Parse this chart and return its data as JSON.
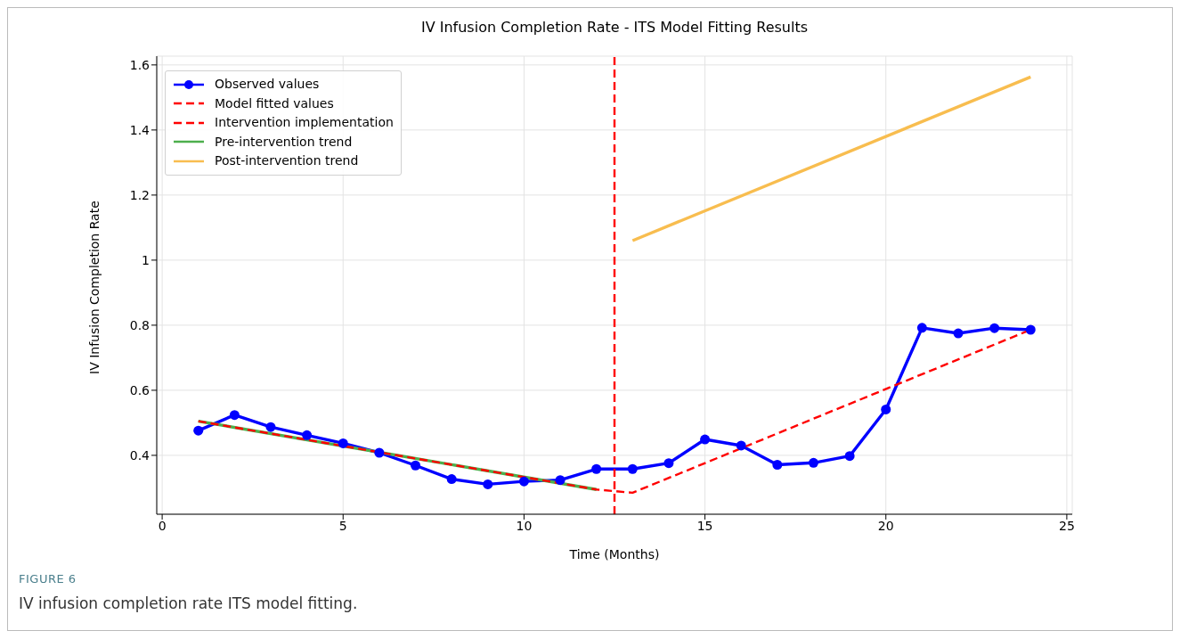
{
  "chart_data": {
    "type": "line",
    "title": "IV Infusion Completion Rate - ITS Model Fitting Results",
    "xlabel": "Time (Months)",
    "ylabel": "IV Infusion Completion Rate",
    "xlim": [
      -0.15,
      25.15
    ],
    "xticks": [
      0,
      5,
      10,
      15,
      20,
      25
    ],
    "ylim": [
      0.219,
      1.627
    ],
    "yticks": [
      0.4,
      0.6,
      0.8,
      1.0,
      1.2,
      1.4,
      1.6
    ],
    "grid": true,
    "legend": "top left",
    "series": [
      {
        "name": "Observed values",
        "color": "#0000ff",
        "marker": "circle",
        "line_style": "solid",
        "x": [
          1,
          2,
          3,
          4,
          5,
          6,
          7,
          8,
          9,
          10,
          11,
          12,
          13,
          14,
          15,
          16,
          17,
          18,
          19,
          20,
          21,
          22,
          23,
          24
        ],
        "values": [
          0.476,
          0.524,
          0.487,
          0.462,
          0.437,
          0.408,
          0.369,
          0.327,
          0.311,
          0.32,
          0.324,
          0.358,
          0.358,
          0.376,
          0.449,
          0.43,
          0.371,
          0.377,
          0.398,
          0.541,
          0.792,
          0.775,
          0.791,
          0.786
        ]
      },
      {
        "name": "Model fitted values",
        "color": "#ff0000",
        "line_style": "dashed",
        "x": [
          1,
          12,
          13,
          24
        ],
        "values": [
          0.505,
          0.295,
          0.285,
          0.786
        ]
      },
      {
        "name": "Intervention implementation",
        "color": "#ff0000",
        "line_style": "dashed",
        "x": [
          12.5,
          12.5
        ],
        "values": [
          0.219,
          1.627
        ]
      },
      {
        "name": "Pre-intervention trend",
        "color": "#4daf4d",
        "line_style": "solid",
        "x": [
          1,
          12
        ],
        "values": [
          0.505,
          0.295
        ]
      },
      {
        "name": "Post-intervention trend",
        "color": "#f8bd4f",
        "line_style": "solid",
        "x": [
          13,
          24
        ],
        "values": [
          1.06,
          1.563
        ]
      }
    ],
    "annotations": [
      "FIGURE 6",
      "IV infusion completion rate ITS model fitting."
    ]
  }
}
